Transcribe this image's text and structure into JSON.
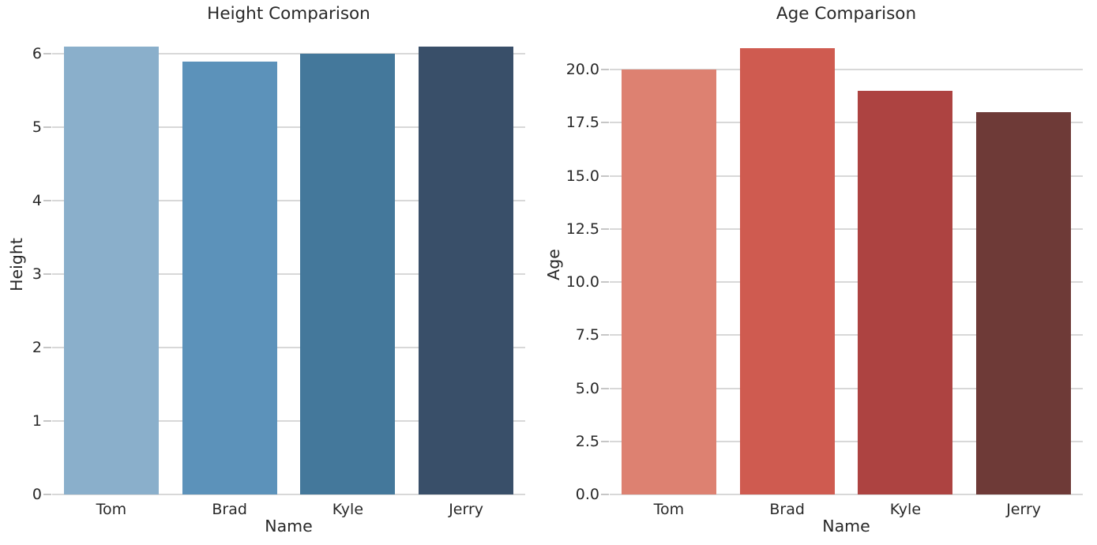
{
  "figure": {
    "background": "#ffffff"
  },
  "style": {
    "grid_color": "#d8d8d8",
    "tick_mark_color": "#c6c6c6",
    "text_color": "#282828"
  },
  "chart_data": [
    {
      "type": "bar",
      "title": "Height Comparison",
      "xlabel": "Name",
      "ylabel": "Height",
      "categories": [
        "Tom",
        "Brad",
        "Kyle",
        "Jerry"
      ],
      "values": [
        6.1,
        5.9,
        6.0,
        6.1
      ],
      "bar_colors": [
        "#8aafcb",
        "#5c92ba",
        "#44789b",
        "#394f69"
      ],
      "ylim": [
        0,
        6.25
      ],
      "yticks": [
        0,
        1,
        2,
        3,
        4,
        5,
        6
      ],
      "ytick_labels": [
        "0",
        "1",
        "2",
        "3",
        "4",
        "5",
        "6"
      ],
      "grid": "horizontal",
      "legend": "none"
    },
    {
      "type": "bar",
      "title": "Age Comparison",
      "xlabel": "Name",
      "ylabel": "Age",
      "categories": [
        "Tom",
        "Brad",
        "Kyle",
        "Jerry"
      ],
      "values": [
        20,
        21,
        19,
        18
      ],
      "bar_colors": [
        "#dd8171",
        "#cf5b50",
        "#ad4341",
        "#6e3a37"
      ],
      "ylim": [
        0,
        21.6
      ],
      "yticks": [
        0,
        2.5,
        5,
        7.5,
        10,
        12.5,
        15,
        17.5,
        20
      ],
      "ytick_labels": [
        "0.0",
        "2.5",
        "5.0",
        "7.5",
        "10.0",
        "12.5",
        "15.0",
        "17.5",
        "20.0"
      ],
      "grid": "horizontal",
      "legend": "none"
    }
  ]
}
